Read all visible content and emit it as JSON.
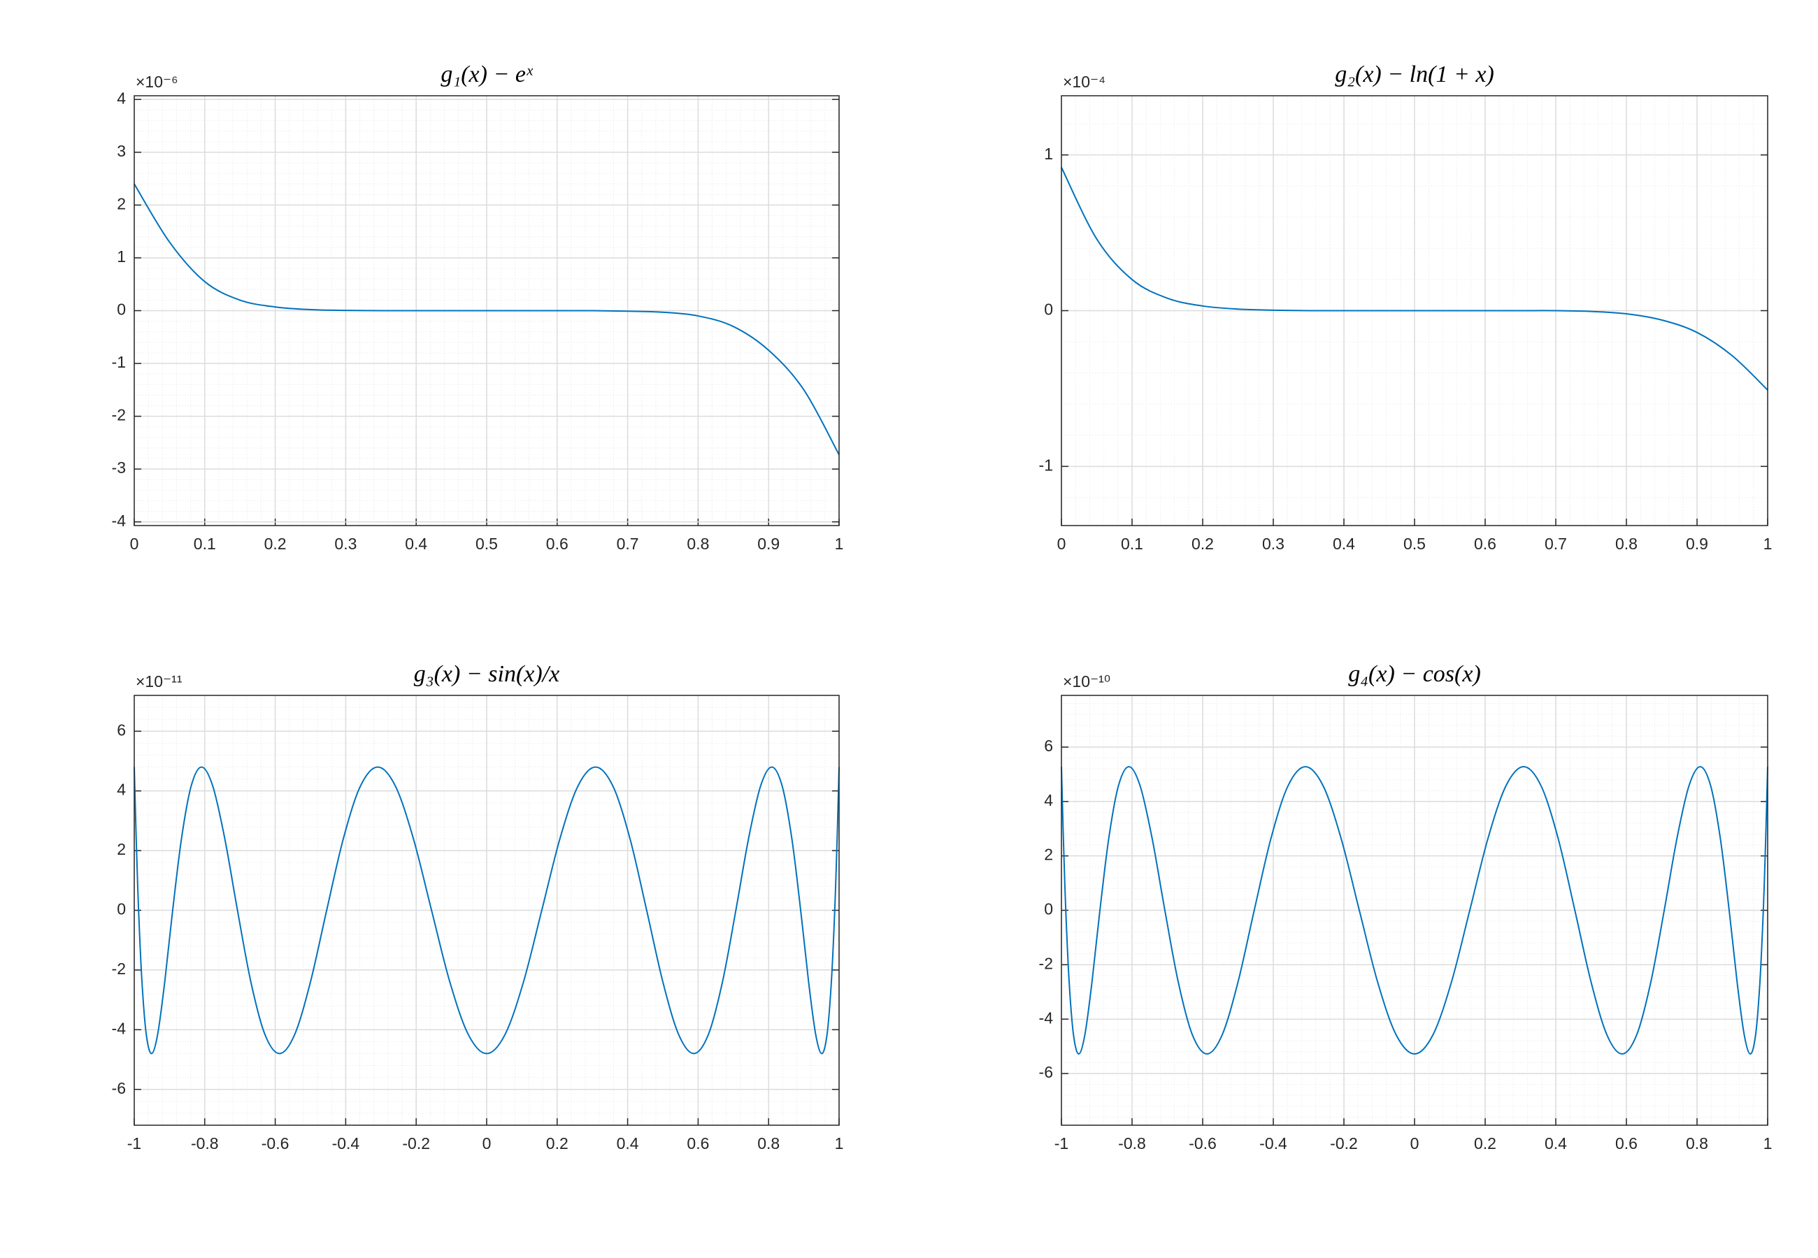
{
  "chart_data": [
    {
      "type": "line",
      "title": "g₁(x) − eˣ",
      "y_exponent": "×10⁻⁶",
      "x": [
        0,
        0.05,
        0.1,
        0.15,
        0.2,
        0.25,
        0.3,
        0.35,
        0.4,
        0.45,
        0.5,
        0.55,
        0.6,
        0.65,
        0.7,
        0.75,
        0.8,
        0.85,
        0.9,
        0.95,
        1
      ],
      "series": [
        {
          "color": "#0072bd",
          "values": [
            2.4,
            1.3,
            0.55,
            0.2,
            0.07,
            0.02,
            0.005,
            0,
            0,
            0,
            0,
            0,
            0,
            0,
            -0.01,
            -0.03,
            -0.1,
            -0.3,
            -0.75,
            -1.5,
            -2.73
          ]
        }
      ],
      "xlim": [
        0,
        1
      ],
      "ylim": [
        -4.07,
        4.07
      ],
      "xticks": [
        0,
        0.1,
        0.2,
        0.3,
        0.4,
        0.5,
        0.6,
        0.7,
        0.8,
        0.9,
        1
      ],
      "yticks": [
        -4,
        -3,
        -2,
        -1,
        0,
        1,
        2,
        3,
        4
      ],
      "grid": true,
      "minor_grid": true
    },
    {
      "type": "line",
      "title": "g₂(x) − ln(1 + x)",
      "y_exponent": "×10⁻⁴",
      "x": [
        0,
        0.05,
        0.1,
        0.15,
        0.2,
        0.25,
        0.3,
        0.35,
        0.4,
        0.45,
        0.5,
        0.55,
        0.6,
        0.65,
        0.7,
        0.75,
        0.8,
        0.85,
        0.9,
        0.95,
        1
      ],
      "series": [
        {
          "color": "#0072bd",
          "values": [
            0.92,
            0.46,
            0.2,
            0.08,
            0.03,
            0.01,
            0.003,
            0,
            0,
            0,
            0,
            0,
            0,
            0,
            0,
            -0.005,
            -0.02,
            -0.06,
            -0.14,
            -0.29,
            -0.51
          ]
        }
      ],
      "xlim": [
        0,
        1
      ],
      "ylim": [
        -1.38,
        1.38
      ],
      "xticks": [
        0,
        0.1,
        0.2,
        0.3,
        0.4,
        0.5,
        0.6,
        0.7,
        0.8,
        0.9,
        1
      ],
      "yticks": [
        -1,
        0,
        1
      ],
      "grid": true,
      "minor_grid": true
    },
    {
      "type": "line",
      "title": "g₃(x) − sin(x)/x",
      "y_exponent": "×10⁻¹¹",
      "x": [
        -1,
        -0.9986,
        -0.9945,
        -0.9877,
        -0.9781,
        -0.9659,
        -0.9511,
        -0.9336,
        -0.9135,
        -0.891,
        -0.866,
        -0.8387,
        -0.809,
        -0.7771,
        -0.7431,
        -0.7071,
        -0.6691,
        -0.6293,
        -0.5878,
        -0.5446,
        -0.5,
        -0.454,
        -0.4067,
        -0.3584,
        -0.309,
        -0.2588,
        -0.2079,
        -0.1564,
        -0.1045,
        -0.0523,
        0,
        0.0523,
        0.1045,
        0.1564,
        0.2079,
        0.2588,
        0.309,
        0.3584,
        0.4067,
        0.454,
        0.5,
        0.5446,
        0.5878,
        0.6293,
        0.6691,
        0.7071,
        0.7431,
        0.7771,
        0.809,
        0.8387,
        0.866,
        0.891,
        0.9135,
        0.9336,
        0.9511,
        0.9659,
        0.9781,
        0.9877,
        0.9945,
        0.9986,
        1
      ],
      "series": [
        {
          "color": "#0072bd",
          "values": [
            4.8,
            4.157,
            2.4,
            0,
            -2.4,
            -4.157,
            -4.8,
            -4.157,
            -2.4,
            0,
            2.4,
            4.157,
            4.8,
            4.157,
            2.4,
            0,
            -2.4,
            -4.157,
            -4.8,
            -4.157,
            -2.4,
            0,
            2.4,
            4.157,
            4.8,
            4.157,
            2.4,
            0,
            -2.4,
            -4.157,
            -4.8,
            -4.157,
            -2.4,
            0,
            2.4,
            4.157,
            4.8,
            4.157,
            2.4,
            0,
            -2.4,
            -4.157,
            -4.8,
            -4.157,
            -2.4,
            0,
            2.4,
            4.157,
            4.8,
            4.157,
            2.4,
            0,
            -2.4,
            -4.157,
            -4.8,
            -4.157,
            -2.4,
            0,
            2.4,
            4.157,
            4.8
          ]
        }
      ],
      "xlim": [
        -1,
        1
      ],
      "ylim": [
        -7.2,
        7.2
      ],
      "xticks": [
        -1,
        -0.8,
        -0.6,
        -0.4,
        -0.2,
        0,
        0.2,
        0.4,
        0.6,
        0.8,
        1
      ],
      "yticks": [
        -6,
        -4,
        -2,
        0,
        2,
        4,
        6
      ],
      "grid": true,
      "minor_grid": true
    },
    {
      "type": "line",
      "title": "g₄(x) − cos(x)",
      "y_exponent": "×10⁻¹⁰",
      "x": [
        -1,
        -0.9986,
        -0.9945,
        -0.9877,
        -0.9781,
        -0.9659,
        -0.9511,
        -0.9336,
        -0.9135,
        -0.891,
        -0.866,
        -0.8387,
        -0.809,
        -0.7771,
        -0.7431,
        -0.7071,
        -0.6691,
        -0.6293,
        -0.5878,
        -0.5446,
        -0.5,
        -0.454,
        -0.4067,
        -0.3584,
        -0.309,
        -0.2588,
        -0.2079,
        -0.1564,
        -0.1045,
        -0.0523,
        0,
        0.0523,
        0.1045,
        0.1564,
        0.2079,
        0.2588,
        0.309,
        0.3584,
        0.4067,
        0.454,
        0.5,
        0.5446,
        0.5878,
        0.6293,
        0.6691,
        0.7071,
        0.7431,
        0.7771,
        0.809,
        0.8387,
        0.866,
        0.891,
        0.9135,
        0.9336,
        0.9511,
        0.9659,
        0.9781,
        0.9877,
        0.9945,
        0.9986,
        1
      ],
      "series": [
        {
          "color": "#0072bd",
          "values": [
            5.28,
            4.573,
            2.64,
            0,
            -2.64,
            -4.573,
            -5.28,
            -4.573,
            -2.64,
            0,
            2.64,
            4.573,
            5.28,
            4.573,
            2.64,
            0,
            -2.64,
            -4.573,
            -5.28,
            -4.573,
            -2.64,
            0,
            2.64,
            4.573,
            5.28,
            4.573,
            2.64,
            0,
            -2.64,
            -4.573,
            -5.28,
            -4.573,
            -2.64,
            0,
            2.64,
            4.573,
            5.28,
            4.573,
            2.64,
            0,
            -2.64,
            -4.573,
            -5.28,
            -4.573,
            -2.64,
            0,
            2.64,
            4.573,
            5.28,
            4.573,
            2.64,
            0,
            -2.64,
            -4.573,
            -5.28,
            -4.573,
            -2.64,
            0,
            2.64,
            4.573,
            5.28
          ]
        }
      ],
      "xlim": [
        -1,
        1
      ],
      "ylim": [
        -7.9,
        7.9
      ],
      "xticks": [
        -1,
        -0.8,
        -0.6,
        -0.4,
        -0.2,
        0,
        0.2,
        0.4,
        0.6,
        0.8,
        1
      ],
      "yticks": [
        -6,
        -4,
        -2,
        0,
        2,
        4,
        6
      ],
      "grid": true,
      "minor_grid": true
    }
  ]
}
